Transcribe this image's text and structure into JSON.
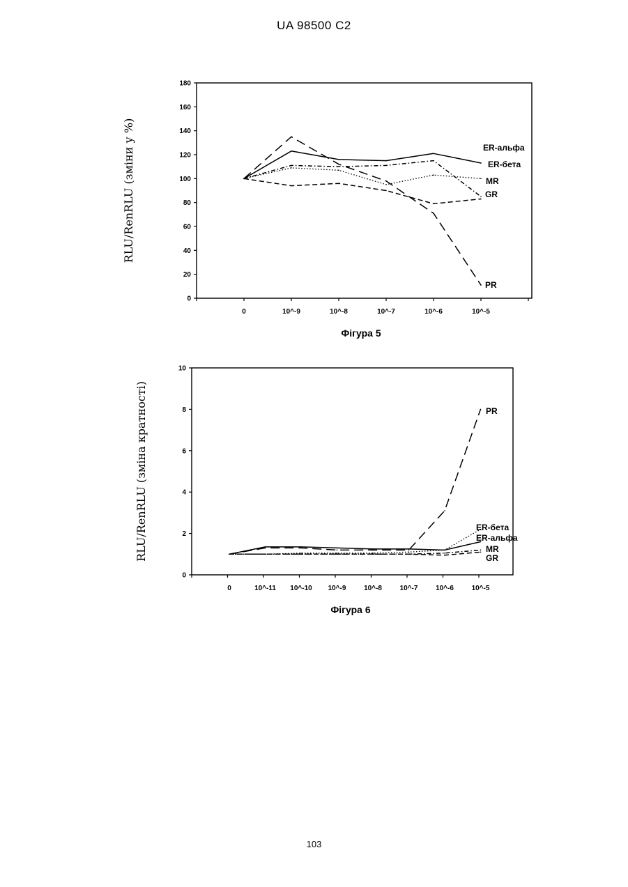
{
  "header": {
    "doc_id": "UA   98500   C2"
  },
  "footer": {
    "page_number": "103"
  },
  "chart_data": [
    {
      "type": "line",
      "caption": "Фігура 5",
      "ylabel": "RLU/RenRLU (зміни у %)",
      "xlabel": "",
      "categories": [
        "0",
        "10^-9",
        "10^-8",
        "10^-7",
        "10^-6",
        "10^-5"
      ],
      "ylim": [
        0,
        180
      ],
      "yticks": [
        "0",
        "20",
        "40",
        "60",
        "80",
        "100",
        "120",
        "140",
        "160",
        "180"
      ],
      "grid": false,
      "series": [
        {
          "name": "ER-альфа",
          "style": "solid",
          "values": [
            100,
            123,
            116,
            115,
            121,
            113
          ]
        },
        {
          "name": "ER-бета",
          "style": "dotted",
          "values": [
            100,
            109,
            107,
            95,
            103,
            100
          ]
        },
        {
          "name": "MR",
          "style": "dashdot",
          "values": [
            100,
            111,
            110,
            111,
            115,
            85
          ]
        },
        {
          "name": "GR",
          "style": "dashed",
          "values": [
            100,
            94,
            96,
            90,
            79,
            83
          ]
        },
        {
          "name": "PR",
          "style": "longdash",
          "values": [
            100,
            135,
            112,
            98,
            71,
            11
          ]
        }
      ]
    },
    {
      "type": "line",
      "caption": "Фігура 6",
      "ylabel": "RLU/RenRLU (зміна кратності)",
      "xlabel": "",
      "categories": [
        "0",
        "10^-11",
        "10^-10",
        "10^-9",
        "10^-8",
        "10^-7",
        "10^-6",
        "10^-5"
      ],
      "ylim": [
        0,
        10
      ],
      "yticks": [
        "0",
        "2",
        "4",
        "6",
        "8",
        "10"
      ],
      "grid": false,
      "series": [
        {
          "name": "PR",
          "style": "longdash",
          "values": [
            1.0,
            1.3,
            1.3,
            1.2,
            1.2,
            1.2,
            3.1,
            8.0
          ]
        },
        {
          "name": "ER-бета",
          "style": "dotted",
          "values": [
            1.0,
            1.0,
            1.05,
            1.05,
            1.05,
            1.1,
            1.2,
            2.2
          ]
        },
        {
          "name": "ER-альфа",
          "style": "solid",
          "values": [
            1.0,
            1.35,
            1.35,
            1.3,
            1.25,
            1.25,
            1.2,
            1.6
          ]
        },
        {
          "name": "MR",
          "style": "dashdot",
          "values": [
            1.0,
            1.0,
            1.0,
            1.0,
            1.0,
            1.0,
            1.05,
            1.2
          ]
        },
        {
          "name": "GR",
          "style": "dashed",
          "values": [
            1.0,
            1.0,
            1.0,
            1.0,
            1.0,
            1.0,
            0.95,
            1.1
          ]
        }
      ]
    }
  ]
}
